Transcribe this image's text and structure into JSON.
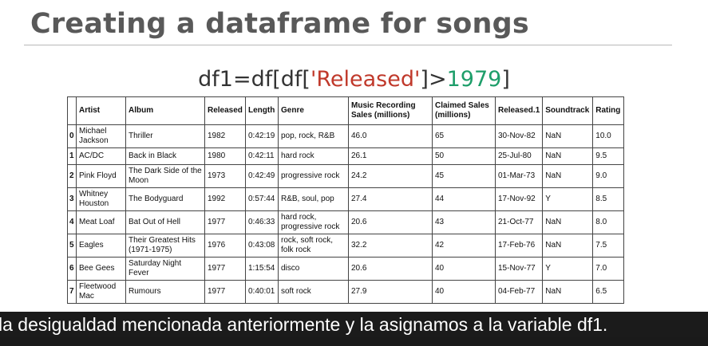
{
  "slide": {
    "title": "Creating a dataframe for songs",
    "code": {
      "prefix": "df1=df[df[",
      "key": "'Released'",
      "op": "]>",
      "value": "1979",
      "suffix": "]"
    }
  },
  "table": {
    "columns": [
      "",
      "Artist",
      "Album",
      "Released",
      "Length",
      "Genre",
      "Music Recording Sales (millions)",
      "Claimed Sales (millions)",
      "Released.1",
      "Soundtrack",
      "Rating"
    ],
    "rows": [
      [
        "0",
        "Michael Jackson",
        "Thriller",
        "1982",
        "0:42:19",
        "pop, rock, R&B",
        "46.0",
        "65",
        "30-Nov-82",
        "NaN",
        "10.0"
      ],
      [
        "1",
        "AC/DC",
        "Back in Black",
        "1980",
        "0:42:11",
        "hard rock",
        "26.1",
        "50",
        "25-Jul-80",
        "NaN",
        "9.5"
      ],
      [
        "2",
        "Pink Floyd",
        "The Dark Side of the Moon",
        "1973",
        "0:42:49",
        "progressive rock",
        "24.2",
        "45",
        "01-Mar-73",
        "NaN",
        "9.0"
      ],
      [
        "3",
        "Whitney Houston",
        "The Bodyguard",
        "1992",
        "0:57:44",
        "R&B, soul, pop",
        "27.4",
        "44",
        "17-Nov-92",
        "Y",
        "8.5"
      ],
      [
        "4",
        "Meat Loaf",
        "Bat Out of Hell",
        "1977",
        "0:46:33",
        "hard rock, progressive rock",
        "20.6",
        "43",
        "21-Oct-77",
        "NaN",
        "8.0"
      ],
      [
        "5",
        "Eagles",
        "Their Greatest Hits (1971-1975)",
        "1976",
        "0:43:08",
        "rock, soft rock, folk rock",
        "32.2",
        "42",
        "17-Feb-76",
        "NaN",
        "7.5"
      ],
      [
        "6",
        "Bee Gees",
        "Saturday Night Fever",
        "1977",
        "1:15:54",
        "disco",
        "20.6",
        "40",
        "15-Nov-77",
        "Y",
        "7.0"
      ],
      [
        "7",
        "Fleetwood Mac",
        "Rumours",
        "1977",
        "0:40:01",
        "soft rock",
        "27.9",
        "40",
        "04-Feb-77",
        "NaN",
        "6.5"
      ]
    ]
  },
  "caption": {
    "text": "la desigualdad mencionada anteriormente y la asignamos a la variable df1."
  }
}
